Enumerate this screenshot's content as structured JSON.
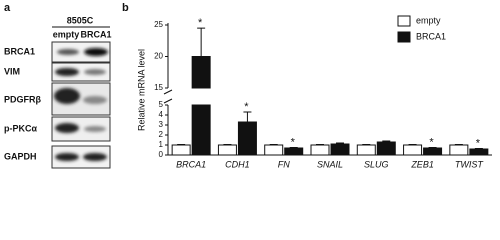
{
  "blot": {
    "label": "a",
    "cell_line": "8505C",
    "lanes": [
      "empty",
      "BRCA1"
    ],
    "rows": [
      "BRCA1",
      "VIM",
      "PDGFRβ",
      "p-PKCα",
      "GAPDH"
    ]
  },
  "chart_data": {
    "type": "bar",
    "panel_label": "b",
    "y_label": "Relative mRNA level",
    "categories": [
      "BRCA1",
      "CDH1",
      "FN",
      "SNAIL",
      "SLUG",
      "ZEB1",
      "TWIST"
    ],
    "series": [
      {
        "name": "empty",
        "color": "#ffffff",
        "values": [
          1,
          1,
          1,
          1,
          1,
          1,
          1
        ],
        "errors": [
          0.05,
          0.05,
          0.05,
          0.05,
          0.05,
          0.05,
          0.05
        ]
      },
      {
        "name": "BRCA1",
        "color": "#111111",
        "values": [
          20,
          3.3,
          0.7,
          1.1,
          1.3,
          0.7,
          0.6
        ],
        "errors": [
          4.5,
          1,
          0.05,
          0.1,
          0.1,
          0.05,
          0.05
        ]
      }
    ],
    "significance": [
      "*",
      "*",
      "*",
      null,
      null,
      "*",
      "*"
    ],
    "ylim": [
      0,
      25
    ],
    "ybreak": [
      5,
      15
    ],
    "yticks": [
      0,
      1,
      2,
      3,
      4,
      5,
      15,
      20,
      25
    ],
    "legend": "top-right"
  }
}
